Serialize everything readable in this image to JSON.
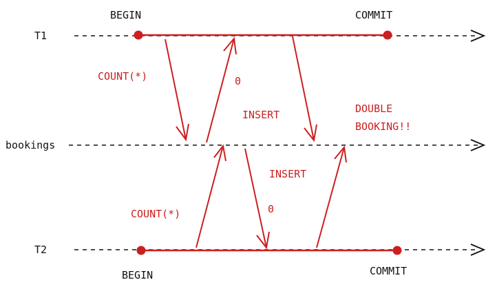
{
  "rows": {
    "t1": "T1",
    "bookings": "bookings",
    "t2": "T2"
  },
  "t1_labels": {
    "begin": "BEGIN",
    "commit": "COMMIT"
  },
  "t2_labels": {
    "begin": "BEGIN",
    "commit": "COMMIT"
  },
  "t1_messages": {
    "count": "COUNT(*)",
    "result": "0",
    "insert": "INSERT"
  },
  "t2_messages": {
    "count": "COUNT(*)",
    "result": "0",
    "insert": "INSERT"
  },
  "annotation": {
    "line1": "DOUBLE",
    "line2": "BOOKING!!"
  },
  "colors": {
    "ink": "#111111",
    "accent": "#cc1f1f"
  }
}
